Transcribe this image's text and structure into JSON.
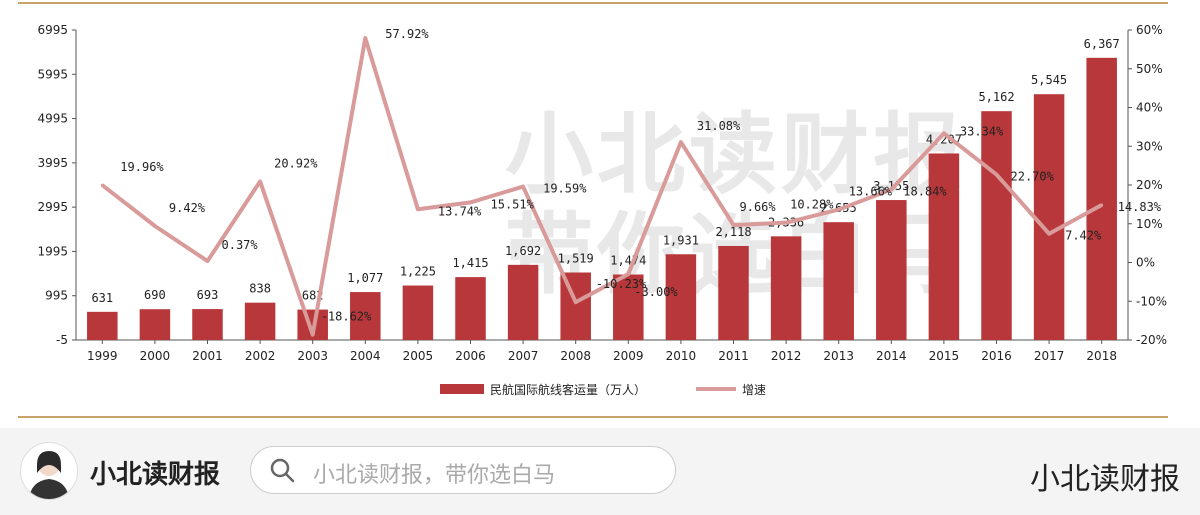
{
  "chart_data": {
    "type": "bar+line",
    "categories": [
      "1999",
      "2000",
      "2001",
      "2002",
      "2003",
      "2004",
      "2005",
      "2006",
      "2007",
      "2008",
      "2009",
      "2010",
      "2011",
      "2012",
      "2013",
      "2014",
      "2015",
      "2016",
      "2017",
      "2018"
    ],
    "series": [
      {
        "name": "民航国际航线客运量（万人）",
        "type": "bar",
        "axis": "left",
        "values": [
          631,
          690,
          693,
          838,
          682,
          1077,
          1225,
          1415,
          1692,
          1519,
          1474,
          1931,
          2118,
          2336,
          2655,
          3155,
          4207,
          5162,
          5545,
          6367
        ],
        "labels": [
          "631",
          "690",
          "693",
          "838",
          "682",
          "1,077",
          "1,225",
          "1,415",
          "1,692",
          "1,519",
          "1,474",
          "1,931",
          "2,118",
          "2,336",
          "2,655",
          "3,155",
          "4,207",
          "5,162",
          "5,545",
          "6,367"
        ]
      },
      {
        "name": "增速",
        "type": "line",
        "axis": "right",
        "values": [
          19.96,
          9.42,
          0.37,
          20.92,
          -18.62,
          57.92,
          13.74,
          15.51,
          19.59,
          -10.23,
          -3.0,
          31.08,
          9.66,
          10.28,
          13.66,
          18.84,
          33.34,
          22.7,
          7.42,
          14.83
        ],
        "labels": [
          "19.96%",
          "9.42%",
          "0.37%",
          "20.92%",
          "-18.62%",
          "57.92%",
          "13.74%",
          "15.51%",
          "19.59%",
          "-10.23%",
          "-3.00%",
          "31.08%",
          "9.66%",
          "10.28%",
          "13.66%",
          "18.84%",
          "33.34%",
          "22.70%",
          "7.42%",
          "14.83%"
        ]
      }
    ],
    "left_axis": {
      "ticks": [
        -5,
        995,
        1995,
        2995,
        3995,
        4995,
        5995,
        6995
      ],
      "tick_labels": [
        "-5",
        "995",
        "1995",
        "2995",
        "3995",
        "4995",
        "5995",
        "6995"
      ],
      "ylim": [
        -5,
        6995
      ]
    },
    "right_axis": {
      "ticks": [
        -20,
        -10,
        0,
        10,
        20,
        30,
        40,
        50,
        60
      ],
      "tick_labels": [
        "-20%",
        "-10%",
        "0%",
        "10%",
        "20%",
        "30%",
        "40%",
        "50%",
        "60%"
      ],
      "ylim": [
        -20,
        60
      ]
    },
    "legend": [
      "民航国际航线客运量（万人）",
      "增速"
    ],
    "legend_position": "bottom",
    "colors": {
      "bar": "#b8373a",
      "line": "#d99a9a",
      "axis": "#555555",
      "text": "#222222"
    },
    "watermark": "小北读财报 带你选白马"
  },
  "footer": {
    "brand": "小北读财报",
    "search_placeholder": "小北读财报，带你选白马",
    "right_brand": "小北读财报"
  }
}
